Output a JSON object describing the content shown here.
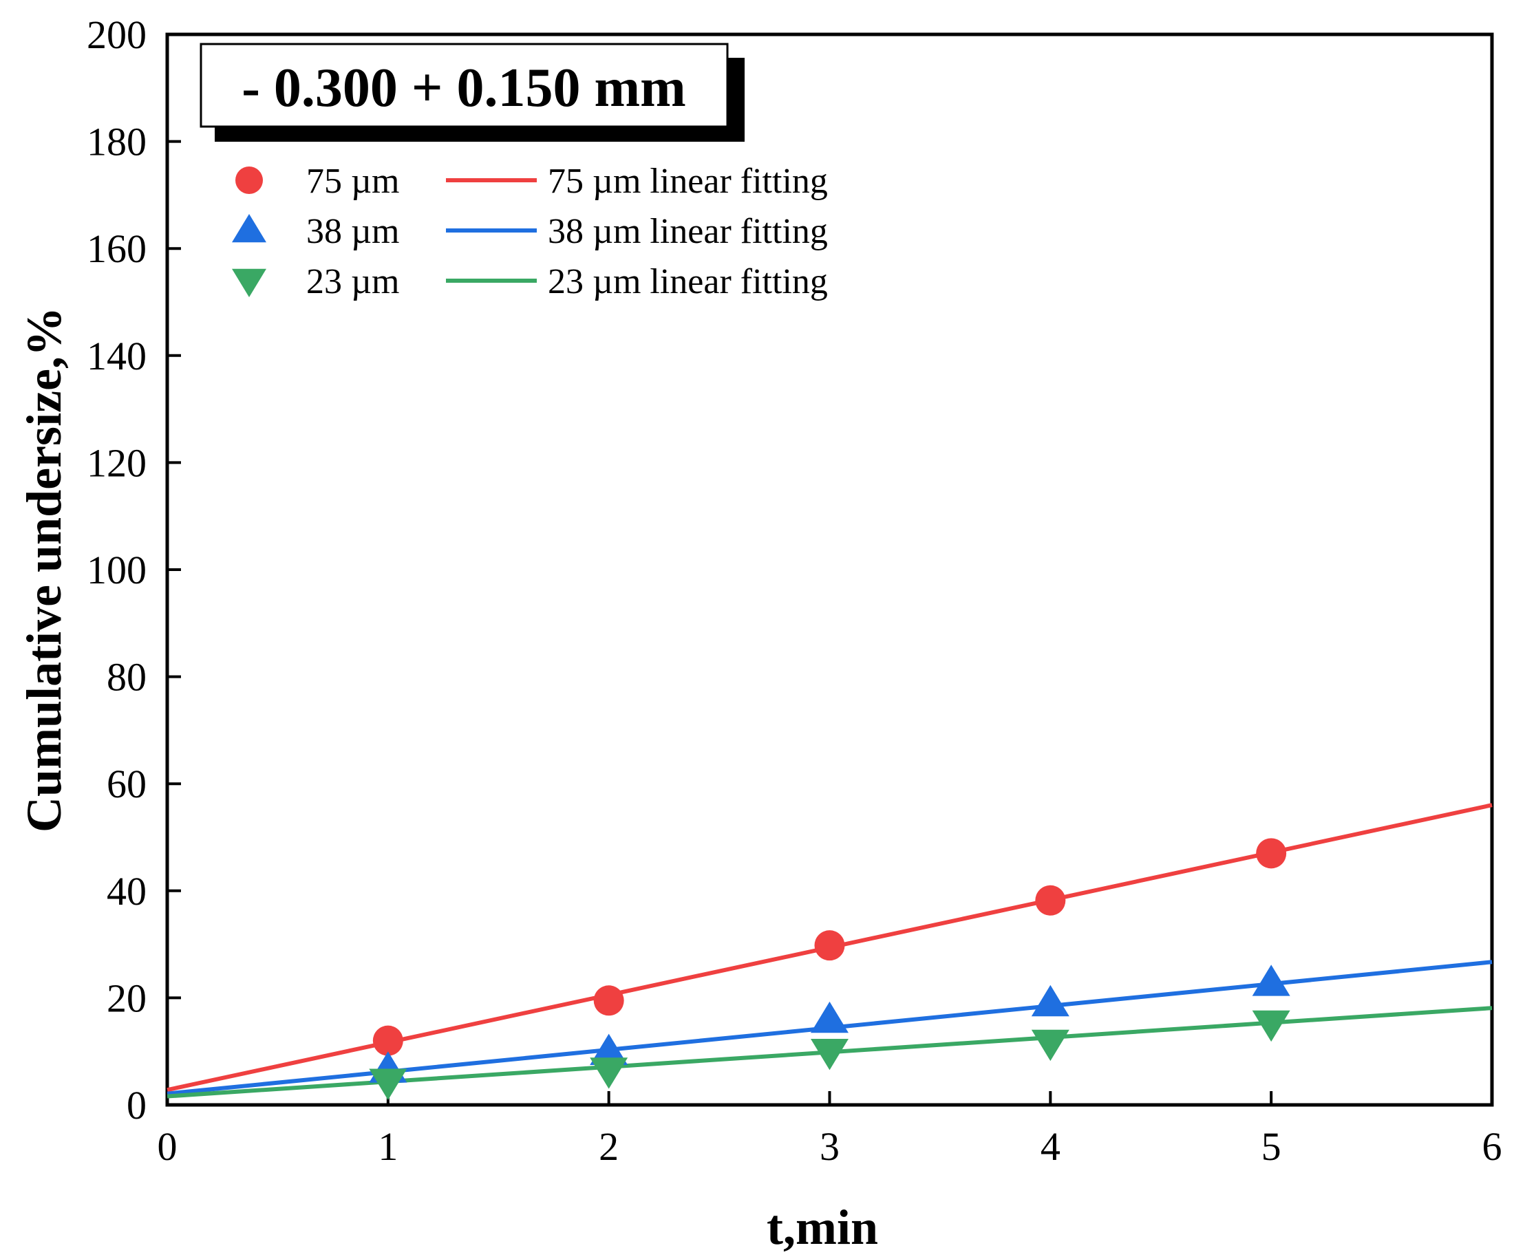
{
  "chart_data": {
    "type": "scatter",
    "title": "- 0.300 + 0.150 mm",
    "xlabel": "t,min",
    "ylabel": "Cumulative  undersize,%",
    "xlim": [
      0,
      6
    ],
    "ylim": [
      0,
      200
    ],
    "xticks": [
      "0",
      "1",
      "2",
      "3",
      "4",
      "5",
      "6"
    ],
    "yticks": [
      "0",
      "20",
      "40",
      "60",
      "80",
      "100",
      "120",
      "140",
      "160",
      "180",
      "200"
    ],
    "grid": false,
    "legend_position": "top-left",
    "series": [
      {
        "name": "75 µm",
        "marker": "circle",
        "color": "#ef4040",
        "x": [
          1,
          2,
          3,
          4,
          5
        ],
        "y": [
          12.0,
          19.5,
          29.8,
          38.2,
          47.0
        ],
        "fit_name": "75 µm linear fitting",
        "fit": {
          "intercept": 2.8,
          "slope": 8.87
        }
      },
      {
        "name": "38 µm",
        "marker": "triangle-up",
        "color": "#1f6fe0",
        "x": [
          1,
          2,
          3,
          4,
          5
        ],
        "y": [
          6.6,
          9.9,
          15.9,
          19.0,
          22.8
        ],
        "fit_name": "38 µm linear fitting",
        "fit": {
          "intercept": 2.1,
          "slope": 4.1
        }
      },
      {
        "name": "23 µm",
        "marker": "triangle-down",
        "color": "#3aa864",
        "x": [
          1,
          2,
          3,
          4,
          5
        ],
        "y": [
          4.3,
          6.4,
          9.9,
          11.6,
          15.2
        ],
        "fit_name": "23 µm linear fitting",
        "fit": {
          "intercept": 1.6,
          "slope": 2.75
        }
      }
    ]
  }
}
